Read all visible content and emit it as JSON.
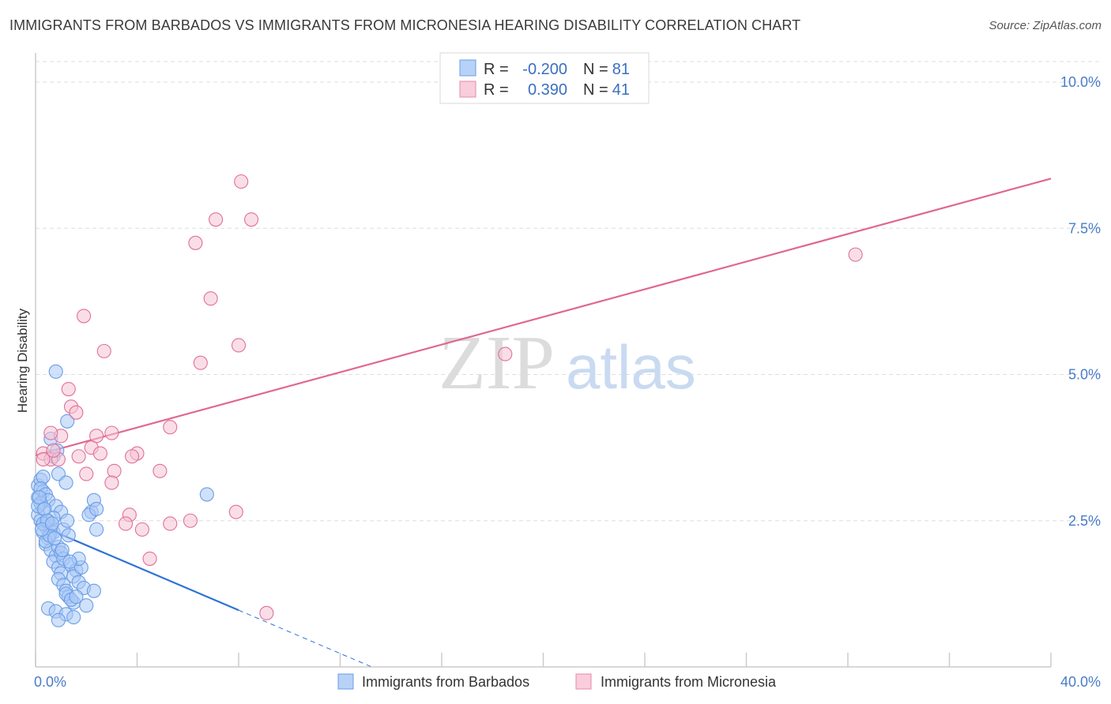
{
  "title": "IMMIGRANTS FROM BARBADOS VS IMMIGRANTS FROM MICRONESIA HEARING DISABILITY CORRELATION CHART",
  "source": "Source: ZipAtlas.com",
  "watermark": {
    "zip": "ZIP",
    "atlas": "atlas"
  },
  "chart_data": {
    "type": "scatter",
    "title": "IMMIGRANTS FROM BARBADOS VS IMMIGRANTS FROM MICRONESIA HEARING DISABILITY CORRELATION CHART",
    "xlabel": "",
    "ylabel": "Hearing Disability",
    "xlim": [
      0,
      40
    ],
    "ylim": [
      0,
      10.5
    ],
    "x_tick_labels": [
      {
        "value": 0,
        "label": "0.0%"
      },
      {
        "value": 40,
        "label": "40.0%"
      }
    ],
    "y_tick_labels": [
      {
        "value": 2.5,
        "label": "2.5%"
      },
      {
        "value": 5.0,
        "label": "5.0%"
      },
      {
        "value": 7.5,
        "label": "7.5%"
      },
      {
        "value": 10.0,
        "label": "10.0%"
      }
    ],
    "grid": true,
    "legend_placement": "top-center",
    "series": [
      {
        "name": "Immigrants from Barbados",
        "color": "#6a9ee6",
        "fill": "#a9c9f5",
        "R": "-0.200",
        "N": "81",
        "trend": {
          "x0": 0.0,
          "y0": 2.45,
          "x1": 8.0,
          "y1": 0.97,
          "dashed_to_x": 13.2
        },
        "points": [
          [
            0.1,
            3.1
          ],
          [
            0.2,
            3.2
          ],
          [
            0.3,
            3.0
          ],
          [
            0.1,
            2.9
          ],
          [
            0.2,
            2.8
          ],
          [
            0.3,
            2.7
          ],
          [
            0.1,
            2.6
          ],
          [
            0.2,
            2.5
          ],
          [
            0.4,
            2.4
          ],
          [
            0.3,
            2.3
          ],
          [
            0.5,
            2.5
          ],
          [
            0.6,
            2.4
          ],
          [
            0.7,
            2.3
          ],
          [
            0.5,
            2.2
          ],
          [
            0.4,
            2.1
          ],
          [
            0.6,
            2.0
          ],
          [
            0.8,
            1.9
          ],
          [
            0.7,
            1.8
          ],
          [
            0.9,
            1.7
          ],
          [
            1.0,
            1.6
          ],
          [
            0.9,
            1.5
          ],
          [
            1.1,
            1.4
          ],
          [
            1.2,
            1.3
          ],
          [
            1.3,
            1.2
          ],
          [
            1.5,
            1.1
          ],
          [
            0.5,
            1.0
          ],
          [
            0.8,
            0.95
          ],
          [
            1.2,
            0.9
          ],
          [
            1.5,
            0.85
          ],
          [
            0.9,
            0.8
          ],
          [
            0.3,
            3.25
          ],
          [
            0.6,
            3.9
          ],
          [
            0.7,
            3.6
          ],
          [
            0.9,
            3.3
          ],
          [
            1.2,
            3.15
          ],
          [
            0.2,
            3.05
          ],
          [
            0.4,
            2.95
          ],
          [
            0.5,
            2.85
          ],
          [
            0.8,
            2.75
          ],
          [
            1.0,
            2.65
          ],
          [
            0.7,
            2.55
          ],
          [
            0.3,
            2.45
          ],
          [
            1.1,
            2.35
          ],
          [
            1.3,
            2.25
          ],
          [
            0.4,
            2.15
          ],
          [
            0.9,
            2.05
          ],
          [
            1.0,
            1.95
          ],
          [
            1.1,
            1.85
          ],
          [
            1.4,
            1.75
          ],
          [
            1.6,
            1.65
          ],
          [
            1.5,
            1.55
          ],
          [
            1.7,
            1.45
          ],
          [
            1.9,
            1.35
          ],
          [
            1.2,
            1.25
          ],
          [
            1.4,
            1.15
          ],
          [
            2.0,
            1.05
          ],
          [
            1.6,
            1.2
          ],
          [
            1.8,
            1.7
          ],
          [
            2.3,
            1.3
          ],
          [
            1.7,
            1.85
          ],
          [
            2.2,
            2.65
          ],
          [
            2.1,
            2.6
          ],
          [
            2.3,
            2.85
          ],
          [
            2.4,
            2.7
          ],
          [
            2.4,
            2.35
          ],
          [
            0.8,
            5.05
          ],
          [
            1.25,
            4.2
          ],
          [
            6.75,
            2.95
          ],
          [
            0.2,
            2.8
          ],
          [
            0.1,
            2.75
          ],
          [
            0.15,
            2.9
          ],
          [
            0.35,
            2.7
          ],
          [
            0.45,
            2.5
          ],
          [
            0.55,
            2.25
          ],
          [
            0.25,
            2.35
          ],
          [
            0.65,
            2.45
          ],
          [
            0.75,
            2.2
          ],
          [
            1.05,
            2.0
          ],
          [
            1.35,
            1.8
          ],
          [
            1.25,
            2.5
          ],
          [
            0.85,
            3.7
          ]
        ]
      },
      {
        "name": "Immigrants from Micronesia",
        "color": "#e0709a",
        "fill": "#f6c2d4",
        "R": "0.390",
        "N": "41",
        "trend": {
          "x0": 0.0,
          "y0": 3.62,
          "x1": 40.0,
          "y1": 8.35
        },
        "points": [
          [
            8.1,
            8.3
          ],
          [
            7.1,
            7.65
          ],
          [
            8.5,
            7.65
          ],
          [
            6.3,
            7.25
          ],
          [
            6.9,
            6.3
          ],
          [
            1.9,
            6.0
          ],
          [
            2.7,
            5.4
          ],
          [
            8.0,
            5.5
          ],
          [
            6.5,
            5.2
          ],
          [
            18.5,
            5.35
          ],
          [
            32.3,
            7.05
          ],
          [
            1.3,
            4.75
          ],
          [
            1.4,
            4.45
          ],
          [
            1.6,
            4.35
          ],
          [
            3.0,
            4.0
          ],
          [
            5.3,
            4.1
          ],
          [
            2.4,
            3.95
          ],
          [
            1.0,
            3.95
          ],
          [
            0.6,
            4.0
          ],
          [
            0.3,
            3.65
          ],
          [
            2.2,
            3.75
          ],
          [
            2.55,
            3.65
          ],
          [
            4.0,
            3.65
          ],
          [
            1.7,
            3.6
          ],
          [
            3.8,
            3.6
          ],
          [
            0.6,
            3.55
          ],
          [
            0.9,
            3.55
          ],
          [
            0.3,
            3.55
          ],
          [
            3.1,
            3.35
          ],
          [
            4.9,
            3.35
          ],
          [
            2.0,
            3.3
          ],
          [
            3.0,
            3.15
          ],
          [
            7.9,
            2.65
          ],
          [
            3.7,
            2.6
          ],
          [
            6.1,
            2.5
          ],
          [
            3.55,
            2.45
          ],
          [
            5.3,
            2.45
          ],
          [
            4.2,
            2.35
          ],
          [
            4.5,
            1.85
          ],
          [
            9.1,
            0.92
          ],
          [
            0.7,
            3.7
          ]
        ]
      }
    ]
  },
  "legend": {
    "rows": [
      {
        "r_label": "R =",
        "r_value": "-0.200",
        "n_label": "N =",
        "n_value": "81"
      },
      {
        "r_label": "R =",
        "r_value": "0.390",
        "n_label": "N =",
        "n_value": "41"
      }
    ]
  },
  "bottom_legend": [
    "Immigrants from Barbados",
    "Immigrants from Micronesia"
  ]
}
